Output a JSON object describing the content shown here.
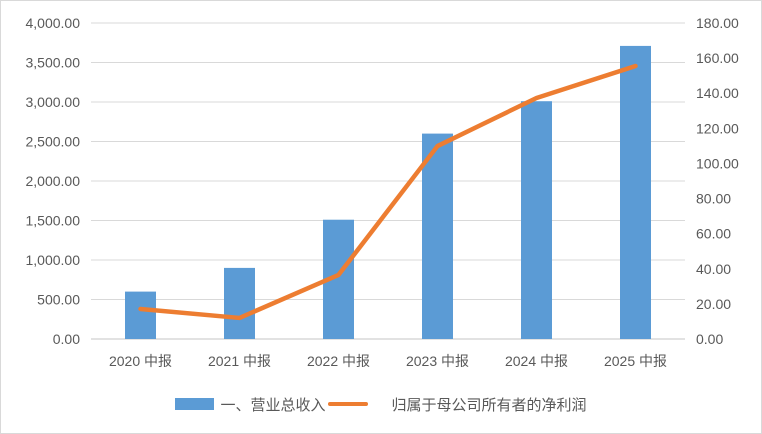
{
  "chart_data": {
    "type": "bar+line",
    "title": "",
    "categories": [
      "2020 中报",
      "2021 中报",
      "2022 中报",
      "2023 中报",
      "2024 中报",
      "2025 中报"
    ],
    "series": [
      {
        "name": "一、营业总收入",
        "type": "bar",
        "axis": "left",
        "color": "#5b9bd5",
        "values": [
          600,
          900,
          1510,
          2600,
          3010,
          3710
        ]
      },
      {
        "name": "归属于母公司所有者的净利润",
        "type": "line",
        "axis": "right",
        "color": "#ed7d31",
        "values": [
          17.1,
          12.0,
          36.5,
          109.9,
          137.3,
          155.5
        ]
      }
    ],
    "left_axis": {
      "ylim": [
        0,
        4000
      ],
      "ticks": [
        "0.00",
        "500.00",
        "1,000.00",
        "1,500.00",
        "2,000.00",
        "2,500.00",
        "3,000.00",
        "3,500.00",
        "4,000.00"
      ]
    },
    "right_axis": {
      "ylim": [
        0,
        180
      ],
      "ticks": [
        "0.00",
        "20.00",
        "40.00",
        "60.00",
        "80.00",
        "100.00",
        "120.00",
        "140.00",
        "160.00",
        "180.00"
      ]
    },
    "xlabel": "",
    "ylabel": "",
    "grid": true,
    "legend_position": "bottom"
  },
  "legend": {
    "bar_label": "一、营业总收入",
    "line_label": "归属于母公司所有者的净利润"
  },
  "colors": {
    "bar": "#5b9bd5",
    "line": "#ed7d31",
    "grid": "#d9d9d9",
    "text": "#595959"
  }
}
